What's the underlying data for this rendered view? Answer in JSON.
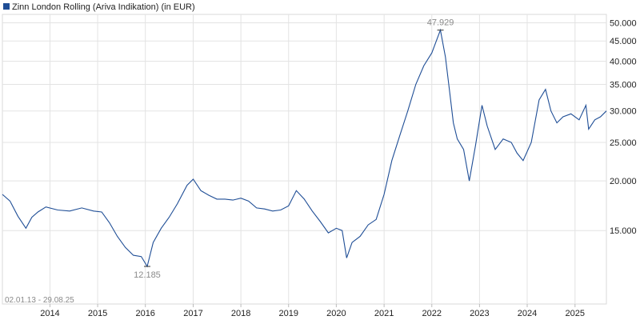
{
  "chart_data": {
    "type": "line",
    "title": "",
    "xlabel": "",
    "ylabel": "",
    "y_scale": "log",
    "ylim": [
      9800,
      52500
    ],
    "xlim": [
      "2013-01-02",
      "2025-08-29"
    ],
    "grid": true,
    "legend_position": "top-left",
    "series": [
      {
        "name": "Zinn London Rolling (Ariva Indikation) (in EUR)",
        "color": "#1f4e96",
        "x": [
          "2013-01-02",
          "2013-03-01",
          "2013-05-01",
          "2013-07-01",
          "2013-08-15",
          "2013-10-01",
          "2013-12-01",
          "2014-03-01",
          "2014-06-01",
          "2014-09-01",
          "2014-12-01",
          "2015-02-01",
          "2015-04-01",
          "2015-06-01",
          "2015-08-01",
          "2015-10-01",
          "2015-12-01",
          "2016-01-15",
          "2016-03-01",
          "2016-05-01",
          "2016-07-01",
          "2016-09-01",
          "2016-11-15",
          "2017-01-01",
          "2017-03-01",
          "2017-05-01",
          "2017-07-01",
          "2017-09-01",
          "2017-11-01",
          "2018-01-01",
          "2018-03-01",
          "2018-05-01",
          "2018-07-01",
          "2018-09-01",
          "2018-11-01",
          "2019-01-01",
          "2019-03-01",
          "2019-05-01",
          "2019-07-01",
          "2019-09-01",
          "2019-11-01",
          "2020-01-01",
          "2020-02-15",
          "2020-03-20",
          "2020-05-01",
          "2020-07-01",
          "2020-09-01",
          "2020-11-01",
          "2021-01-01",
          "2021-03-01",
          "2021-05-01",
          "2021-07-01",
          "2021-09-01",
          "2021-11-01",
          "2022-01-01",
          "2022-03-08",
          "2022-04-15",
          "2022-05-15",
          "2022-06-15",
          "2022-07-15",
          "2022-09-01",
          "2022-10-15",
          "2022-12-01",
          "2023-01-20",
          "2023-03-01",
          "2023-05-01",
          "2023-07-01",
          "2023-09-01",
          "2023-10-15",
          "2023-12-01",
          "2024-02-01",
          "2024-04-01",
          "2024-05-20",
          "2024-07-01",
          "2024-08-15",
          "2024-10-01",
          "2024-12-01",
          "2025-02-01",
          "2025-03-25",
          "2025-04-15",
          "2025-06-01",
          "2025-07-15",
          "2025-08-29"
        ],
        "values": [
          18500,
          17800,
          16300,
          15200,
          16200,
          16700,
          17200,
          16900,
          16800,
          17100,
          16800,
          16700,
          15700,
          14500,
          13600,
          13000,
          12900,
          12185,
          14000,
          15200,
          16200,
          17500,
          19500,
          20200,
          18900,
          18400,
          18000,
          18000,
          17900,
          18100,
          17800,
          17100,
          17000,
          16800,
          16900,
          17300,
          18900,
          18000,
          16800,
          15800,
          14800,
          15200,
          15000,
          12800,
          14000,
          14500,
          15500,
          16000,
          18500,
          22500,
          26000,
          30000,
          35000,
          39000,
          42000,
          47929,
          41000,
          34000,
          28000,
          25500,
          24000,
          20000,
          24500,
          31000,
          27500,
          24000,
          25500,
          25000,
          23500,
          22500,
          25000,
          32000,
          34000,
          30000,
          28000,
          29000,
          29500,
          28500,
          31000,
          27000,
          28500,
          29000,
          30000
        ]
      }
    ],
    "x_ticks": [
      "2014",
      "2015",
      "2016",
      "2017",
      "2018",
      "2019",
      "2020",
      "2021",
      "2022",
      "2023",
      "2024",
      "2025"
    ],
    "y_ticks": [
      {
        "value": 15000,
        "label": "15.000"
      },
      {
        "value": 20000,
        "label": "20.000"
      },
      {
        "value": 25000,
        "label": "25.000"
      },
      {
        "value": 30000,
        "label": "30.000"
      },
      {
        "value": 35000,
        "label": "35.000"
      },
      {
        "value": 40000,
        "label": "40.000"
      },
      {
        "value": 45000,
        "label": "45.000"
      },
      {
        "value": 50000,
        "label": "50.000"
      }
    ],
    "annotations": [
      {
        "label": "47.929",
        "x": "2022-03-08",
        "value": 47929,
        "kind": "max"
      },
      {
        "label": "12.185",
        "x": "2016-01-15",
        "value": 12185,
        "kind": "min"
      }
    ],
    "range_label": "02.01.13 - 29.08.25"
  }
}
